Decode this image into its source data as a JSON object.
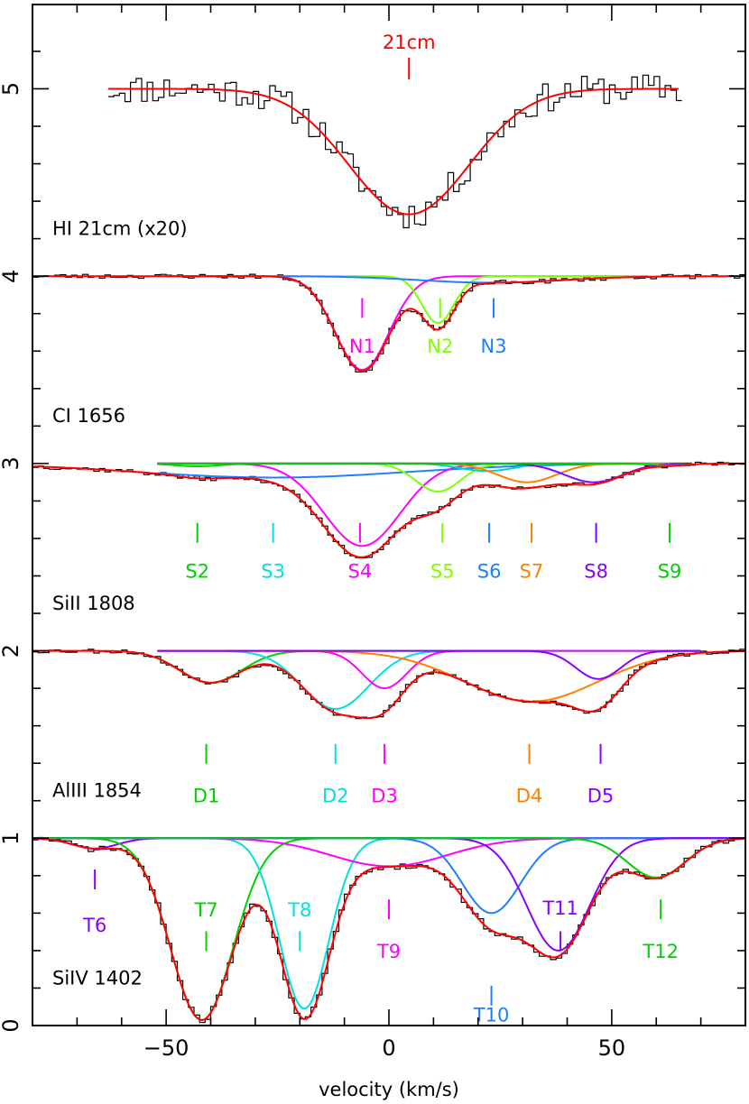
{
  "chart_data": {
    "type": "line",
    "xlabel": "velocity (km/s)",
    "xlim": [
      -80,
      80
    ],
    "ylim": [
      0,
      5.45
    ],
    "x_ticks": [
      -50,
      0,
      50
    ],
    "y_ticks": [
      0,
      1,
      2,
      3,
      4,
      5
    ],
    "hi_marker": {
      "label": "21cm",
      "v": 4.5,
      "color": "#ff0000"
    },
    "panels": [
      {
        "id": "hi",
        "label": "HI 21cm (x20)",
        "continuum": 5.0,
        "data_color": "#000000",
        "data_stroke": 2.2,
        "data_range": [
          -63,
          65
        ],
        "data_noise": 0.08,
        "noise_seed": 11,
        "fit_range": [
          -63,
          65
        ],
        "components": [
          {
            "name": "",
            "v": 4.5,
            "sigma": 13.5,
            "depth": 0.67,
            "color": "#ff0000"
          }
        ],
        "show_components": false,
        "ticks_label_row": []
      },
      {
        "id": "ci",
        "label": "CI 1656",
        "continuum": 4.0,
        "data_color": "#000000",
        "data_stroke": 1.6,
        "data_range": [
          -80,
          80
        ],
        "data_noise": 0.012,
        "noise_seed": 23,
        "fit_range": [
          -80,
          80
        ],
        "components": [
          {
            "name": "N1",
            "v": -6,
            "sigma": 6.0,
            "depth": 0.5,
            "color": "#ff00ff"
          },
          {
            "name": "N2",
            "v": 11,
            "sigma": 3.6,
            "depth": 0.25,
            "color": "#7fff00"
          },
          {
            "name": "N3",
            "v": 23,
            "sigma": 16,
            "depth": 0.035,
            "color": "#1e7fff"
          }
        ],
        "show_components": true,
        "comp_range": [
          -50,
          58
        ],
        "ticks_label_row": [
          {
            "name": "N1",
            "v": -6,
            "tick_y": 3.83,
            "label_y": 3.63,
            "color": "#ff00ff"
          },
          {
            "name": "N2",
            "v": 11.5,
            "tick_y": 3.83,
            "label_y": 3.63,
            "color": "#7fff00"
          },
          {
            "name": "N3",
            "v": 23.5,
            "tick_y": 3.83,
            "label_y": 3.63,
            "color": "#1e7fff"
          }
        ]
      },
      {
        "id": "si2",
        "label": "SiII 1808",
        "continuum": 3.0,
        "data_color": "#000000",
        "data_stroke": 0.9,
        "data_range": [
          -80,
          80
        ],
        "data_noise": 0.012,
        "noise_seed": 37,
        "fit_range": [
          -80,
          80
        ],
        "components": [
          {
            "name": "S2",
            "v": -43,
            "sigma": 5,
            "depth": 0.015,
            "color": "#00d000"
          },
          {
            "name": "S3",
            "v": -26,
            "sigma": 30,
            "depth": 0.075,
            "color": "#1e7fff"
          },
          {
            "name": "S4",
            "v": -6,
            "sigma": 8.5,
            "depth": 0.44,
            "color": "#ff00ff"
          },
          {
            "name": "S5",
            "v": 11,
            "sigma": 5,
            "depth": 0.15,
            "color": "#7fff00"
          },
          {
            "name": "S6",
            "v": 22,
            "sigma": 6,
            "depth": 0.04,
            "color": "#00d0d0"
          },
          {
            "name": "S7",
            "v": 31,
            "sigma": 6.5,
            "depth": 0.1,
            "color": "#ff7f00"
          },
          {
            "name": "S8",
            "v": 46,
            "sigma": 6.5,
            "depth": 0.1,
            "color": "#8a00ff"
          },
          {
            "name": "S9",
            "v": 63,
            "sigma": 4,
            "depth": 0.01,
            "color": "#00d000"
          }
        ],
        "show_components": true,
        "comp_range": [
          -52,
          68
        ],
        "ticks_label_row": [
          {
            "name": "S2",
            "v": -43,
            "tick_y": 2.63,
            "label_y": 2.43,
            "color": "#00d000"
          },
          {
            "name": "S3",
            "v": -26,
            "tick_y": 2.63,
            "label_y": 2.43,
            "color": "#00e0e0"
          },
          {
            "name": "S4",
            "v": -6.5,
            "tick_y": 2.63,
            "label_y": 2.43,
            "color": "#ff00ff"
          },
          {
            "name": "S5",
            "v": 12,
            "tick_y": 2.63,
            "label_y": 2.43,
            "color": "#7fff00"
          },
          {
            "name": "S6",
            "v": 22.5,
            "tick_y": 2.63,
            "label_y": 2.43,
            "color": "#1e7fff"
          },
          {
            "name": "S7",
            "v": 32,
            "tick_y": 2.63,
            "label_y": 2.43,
            "color": "#ff7f00"
          },
          {
            "name": "S8",
            "v": 46.5,
            "tick_y": 2.63,
            "label_y": 2.43,
            "color": "#8a00ff"
          },
          {
            "name": "S9",
            "v": 63,
            "tick_y": 2.63,
            "label_y": 2.43,
            "color": "#00d000"
          }
        ]
      },
      {
        "id": "al3",
        "label": "AlIII 1854",
        "continuum": 2.0,
        "data_color": "#000000",
        "data_stroke": 0.9,
        "data_range": [
          -80,
          80
        ],
        "data_noise": 0.012,
        "noise_seed": 53,
        "fit_range": [
          -80,
          80
        ],
        "components": [
          {
            "name": "D1",
            "v": -40,
            "sigma": 7,
            "depth": 0.17,
            "color": "#00d000"
          },
          {
            "name": "D2",
            "v": -12,
            "sigma": 7.5,
            "depth": 0.31,
            "color": "#00e0e0"
          },
          {
            "name": "D3",
            "v": -1,
            "sigma": 5,
            "depth": 0.2,
            "color": "#ff00ff"
          },
          {
            "name": "D4",
            "v": 32,
            "sigma": 15,
            "depth": 0.27,
            "color": "#ff7f00"
          },
          {
            "name": "D5",
            "v": 47,
            "sigma": 5,
            "depth": 0.15,
            "color": "#8a00ff"
          }
        ],
        "show_components": true,
        "comp_range": [
          -52,
          70
        ],
        "ticks_label_row": [
          {
            "name": "D1",
            "v": -41,
            "tick_y": 1.45,
            "label_y": 1.23,
            "color": "#00d000"
          },
          {
            "name": "D2",
            "v": -12,
            "tick_y": 1.45,
            "label_y": 1.23,
            "color": "#00e0e0"
          },
          {
            "name": "D3",
            "v": -1,
            "tick_y": 1.45,
            "label_y": 1.23,
            "color": "#ff00ff"
          },
          {
            "name": "D4",
            "v": 31.5,
            "tick_y": 1.45,
            "label_y": 1.23,
            "color": "#ff7f00"
          },
          {
            "name": "D5",
            "v": 47.5,
            "tick_y": 1.45,
            "label_y": 1.23,
            "color": "#8a00ff"
          }
        ]
      },
      {
        "id": "si4",
        "label": "SiIV 1402",
        "continuum": 1.0,
        "data_color": "#000000",
        "data_stroke": 0.9,
        "data_range": [
          -80,
          80
        ],
        "data_noise": 0.015,
        "noise_seed": 71,
        "fit_range": [
          -80,
          80
        ],
        "components": [
          {
            "name": "T6",
            "v": -66,
            "sigma": 5,
            "depth": 0.055,
            "color": "#8a00ff"
          },
          {
            "name": "T7",
            "v": -42,
            "sigma": 7,
            "depth": 0.97,
            "color": "#00d000"
          },
          {
            "name": "T8",
            "v": -19,
            "sigma": 5.5,
            "depth": 0.91,
            "color": "#00e0e0"
          },
          {
            "name": "T9",
            "v": 0,
            "sigma": 13,
            "depth": 0.15,
            "color": "#ff00ff"
          },
          {
            "name": "T10",
            "v": 23,
            "sigma": 6.5,
            "depth": 0.4,
            "color": "#1e7fff"
          },
          {
            "name": "T11",
            "v": 38,
            "sigma": 7,
            "depth": 0.6,
            "color": "#8a00ff"
          },
          {
            "name": "T12",
            "v": 60,
            "sigma": 6.5,
            "depth": 0.21,
            "color": "#00d000"
          }
        ],
        "show_components": true,
        "comp_range": [
          -80,
          80
        ],
        "ticks_label_row": [
          {
            "name": "T6",
            "v": -66,
            "tick_y": 0.78,
            "label_y": 0.54,
            "color": "#8a00ff"
          },
          {
            "name": "T7",
            "v": -41,
            "tick_y": 0.45,
            "label_y": 0.62,
            "color": "#00d000",
            "label_above": true
          },
          {
            "name": "T8",
            "v": -20,
            "tick_y": 0.45,
            "label_y": 0.62,
            "color": "#00e0e0",
            "label_above": true
          },
          {
            "name": "T9",
            "v": 0,
            "tick_y": 0.62,
            "label_y": 0.4,
            "color": "#ff00ff"
          },
          {
            "name": "T10",
            "v": 23,
            "tick_y": 0.16,
            "label_y": 0.06,
            "color": "#1e7fff",
            "label_below_tick": true
          },
          {
            "name": "T11",
            "v": 38.5,
            "tick_y": 0.45,
            "label_y": 0.63,
            "color": "#8a00ff",
            "label_above": true
          },
          {
            "name": "T12",
            "v": 61,
            "tick_y": 0.62,
            "label_y": 0.4,
            "color": "#00d000"
          }
        ]
      }
    ]
  }
}
